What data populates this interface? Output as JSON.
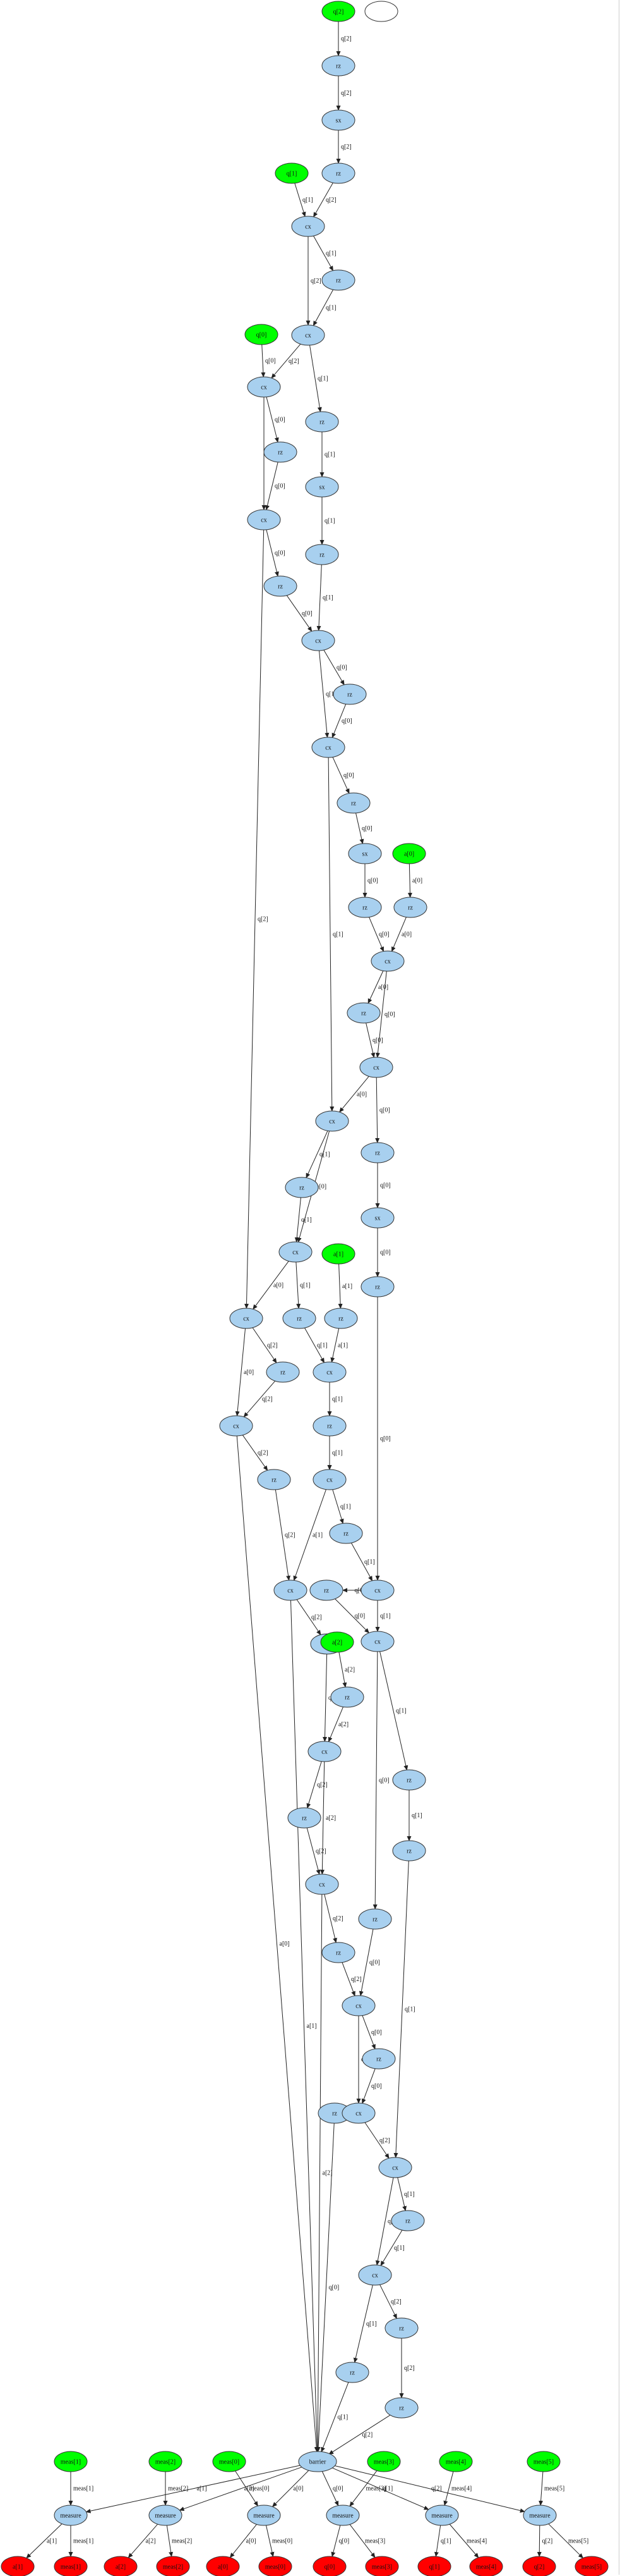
{
  "colors": {
    "input": "#00ff00",
    "gate": "#a8d0ef",
    "output": "#ff0000",
    "edge": "#222222",
    "stroke": "#333333"
  },
  "nodes": [
    {
      "id": "in_q2",
      "label": "q[2]",
      "kind": "input"
    },
    {
      "id": "blank_top",
      "label": "",
      "kind": "empty"
    },
    {
      "id": "rz_a",
      "label": "rz",
      "kind": "gate"
    },
    {
      "id": "sx_a",
      "label": "sx",
      "kind": "gate"
    },
    {
      "id": "in_q1",
      "label": "q[1]",
      "kind": "input"
    },
    {
      "id": "rz_b",
      "label": "rz",
      "kind": "gate"
    },
    {
      "id": "cx_1",
      "label": "cx",
      "kind": "gate"
    },
    {
      "id": "rz_c",
      "label": "rz",
      "kind": "gate"
    },
    {
      "id": "cx_2",
      "label": "cx",
      "kind": "gate"
    },
    {
      "id": "in_q0",
      "label": "q[0]",
      "kind": "input"
    },
    {
      "id": "rz_d",
      "label": "rz",
      "kind": "gate"
    },
    {
      "id": "cx_3",
      "label": "cx",
      "kind": "gate"
    },
    {
      "id": "rz_e",
      "label": "rz",
      "kind": "gate"
    },
    {
      "id": "sx_b",
      "label": "sx",
      "kind": "gate"
    },
    {
      "id": "cx_4",
      "label": "cx",
      "kind": "gate"
    },
    {
      "id": "rz_f",
      "label": "rz",
      "kind": "gate"
    },
    {
      "id": "rz_g",
      "label": "rz",
      "kind": "gate"
    },
    {
      "id": "cx_5",
      "label": "cx",
      "kind": "gate"
    },
    {
      "id": "rz_h",
      "label": "rz",
      "kind": "gate"
    },
    {
      "id": "cx_6",
      "label": "cx",
      "kind": "gate"
    },
    {
      "id": "rz_i",
      "label": "rz",
      "kind": "gate"
    },
    {
      "id": "sx_c",
      "label": "sx",
      "kind": "gate"
    },
    {
      "id": "in_a0",
      "label": "a[0]",
      "kind": "input"
    },
    {
      "id": "rz_j",
      "label": "rz",
      "kind": "gate"
    },
    {
      "id": "rz_k",
      "label": "rz",
      "kind": "gate"
    },
    {
      "id": "cx_7",
      "label": "cx",
      "kind": "gate"
    },
    {
      "id": "rz_l",
      "label": "rz",
      "kind": "gate"
    },
    {
      "id": "cx_8",
      "label": "cx",
      "kind": "gate"
    },
    {
      "id": "cx_9",
      "label": "cx",
      "kind": "gate"
    },
    {
      "id": "rz_m",
      "label": "rz",
      "kind": "gate"
    },
    {
      "id": "rz_n",
      "label": "rz",
      "kind": "gate"
    },
    {
      "id": "sx_d",
      "label": "sx",
      "kind": "gate"
    },
    {
      "id": "cx_10",
      "label": "cx",
      "kind": "gate"
    },
    {
      "id": "rz_o",
      "label": "rz",
      "kind": "gate"
    },
    {
      "id": "in_a1",
      "label": "a[1]",
      "kind": "input"
    },
    {
      "id": "cx_11",
      "label": "cx",
      "kind": "gate"
    },
    {
      "id": "rz_p",
      "label": "rz",
      "kind": "gate"
    },
    {
      "id": "rz_q",
      "label": "rz",
      "kind": "gate"
    },
    {
      "id": "cx_12",
      "label": "cx",
      "kind": "gate"
    },
    {
      "id": "cx_13",
      "label": "cx",
      "kind": "gate"
    },
    {
      "id": "rz_r",
      "label": "rz",
      "kind": "gate"
    },
    {
      "id": "rz_s",
      "label": "rz",
      "kind": "gate"
    },
    {
      "id": "cx_14",
      "label": "cx",
      "kind": "gate"
    },
    {
      "id": "rz_t",
      "label": "rz",
      "kind": "gate"
    },
    {
      "id": "rz_u",
      "label": "rz",
      "kind": "gate"
    },
    {
      "id": "cx_15",
      "label": "cx",
      "kind": "gate"
    },
    {
      "id": "rz_v",
      "label": "rz",
      "kind": "gate"
    },
    {
      "id": "cx_16",
      "label": "cx",
      "kind": "gate"
    },
    {
      "id": "cx_17",
      "label": "cx",
      "kind": "gate"
    },
    {
      "id": "rz_w",
      "label": "rz",
      "kind": "gate"
    },
    {
      "id": "in_a2",
      "label": "a[2]",
      "kind": "input"
    },
    {
      "id": "rz_x",
      "label": "rz",
      "kind": "gate"
    },
    {
      "id": "cx_18",
      "label": "cx",
      "kind": "gate"
    },
    {
      "id": "rz_y",
      "label": "rz",
      "kind": "gate"
    },
    {
      "id": "rz_z",
      "label": "rz",
      "kind": "gate"
    },
    {
      "id": "rz_aa",
      "label": "rz",
      "kind": "gate"
    },
    {
      "id": "cx_19",
      "label": "cx",
      "kind": "gate"
    },
    {
      "id": "rz_ab",
      "label": "rz",
      "kind": "gate"
    },
    {
      "id": "rz_ac",
      "label": "rz",
      "kind": "gate"
    },
    {
      "id": "cx_20",
      "label": "cx",
      "kind": "gate"
    },
    {
      "id": "rz_ad",
      "label": "rz",
      "kind": "gate"
    },
    {
      "id": "rz_ae",
      "label": "rz",
      "kind": "gate"
    },
    {
      "id": "cx_21",
      "label": "cx",
      "kind": "gate"
    },
    {
      "id": "cx_22",
      "label": "cx",
      "kind": "gate"
    },
    {
      "id": "rz_af",
      "label": "rz",
      "kind": "gate"
    },
    {
      "id": "rz_ag",
      "label": "rz",
      "kind": "gate"
    },
    {
      "id": "cx_23",
      "label": "cx",
      "kind": "gate"
    },
    {
      "id": "rz_ah",
      "label": "rz",
      "kind": "gate"
    },
    {
      "id": "rz_ai",
      "label": "rz",
      "kind": "gate"
    },
    {
      "id": "barrier",
      "label": "barrier",
      "kind": "gate"
    },
    {
      "id": "in_c1",
      "label": "meas[1]",
      "kind": "input"
    },
    {
      "id": "in_c2",
      "label": "meas[2]",
      "kind": "input"
    },
    {
      "id": "in_c0",
      "label": "meas[0]",
      "kind": "input"
    },
    {
      "id": "in_c3",
      "label": "meas[3]",
      "kind": "input"
    },
    {
      "id": "in_c4",
      "label": "meas[4]",
      "kind": "input"
    },
    {
      "id": "in_c5",
      "label": "meas[5]",
      "kind": "input"
    },
    {
      "id": "m1",
      "label": "measure",
      "kind": "gate"
    },
    {
      "id": "m2",
      "label": "measure",
      "kind": "gate"
    },
    {
      "id": "m3",
      "label": "measure",
      "kind": "gate"
    },
    {
      "id": "m4",
      "label": "measure",
      "kind": "gate"
    },
    {
      "id": "m5",
      "label": "measure",
      "kind": "gate"
    },
    {
      "id": "m6",
      "label": "measure",
      "kind": "gate"
    },
    {
      "id": "out_a1",
      "label": "a[1]",
      "kind": "output"
    },
    {
      "id": "out_c1",
      "label": "meas[1]",
      "kind": "output"
    },
    {
      "id": "out_a2",
      "label": "a[2]",
      "kind": "output"
    },
    {
      "id": "out_c2",
      "label": "meas[2]",
      "kind": "output"
    },
    {
      "id": "out_a0",
      "label": "a[0]",
      "kind": "output"
    },
    {
      "id": "out_c0",
      "label": "meas[0]",
      "kind": "output"
    },
    {
      "id": "out_q0",
      "label": "q[0]",
      "kind": "output"
    },
    {
      "id": "out_c3",
      "label": "meas[3]",
      "kind": "output"
    },
    {
      "id": "out_q1",
      "label": "q[1]",
      "kind": "output"
    },
    {
      "id": "out_c4",
      "label": "meas[4]",
      "kind": "output"
    },
    {
      "id": "out_q2",
      "label": "q[2]",
      "kind": "output"
    },
    {
      "id": "out_c5",
      "label": "meas[5]",
      "kind": "output"
    }
  ],
  "edges": [
    {
      "from": "in_q2",
      "to": "rz_a",
      "label": "q[2]"
    },
    {
      "from": "rz_a",
      "to": "sx_a",
      "label": "q[2]"
    },
    {
      "from": "sx_a",
      "to": "rz_b",
      "label": "q[2]"
    },
    {
      "from": "in_q1",
      "to": "cx_1",
      "label": "q[1]"
    },
    {
      "from": "rz_b",
      "to": "cx_1",
      "label": "q[2]"
    },
    {
      "from": "cx_1",
      "to": "rz_c",
      "label": "q[1]"
    },
    {
      "from": "cx_1",
      "to": "cx_2",
      "label": "q[2]"
    },
    {
      "from": "rz_c",
      "to": "cx_2",
      "label": "q[1]"
    },
    {
      "from": "in_q0",
      "to": "cx_3",
      "label": "q[0]"
    },
    {
      "from": "cx_2",
      "to": "cx_3",
      "label": "q[2]"
    },
    {
      "from": "cx_2",
      "to": "rz_d",
      "label": "q[1]"
    },
    {
      "from": "cx_3",
      "to": "rz_e",
      "label": "q[0]"
    },
    {
      "from": "cx_3",
      "to": "cx_4",
      "label": "q[2]"
    },
    {
      "from": "rz_e",
      "to": "cx_4",
      "label": "q[0]"
    },
    {
      "from": "rz_d",
      "to": "sx_b",
      "label": "q[1]"
    },
    {
      "from": "sx_b",
      "to": "rz_f",
      "label": "q[1]"
    },
    {
      "from": "cx_4",
      "to": "rz_g",
      "label": "q[0]"
    },
    {
      "from": "rz_f",
      "to": "cx_5",
      "label": "q[1]"
    },
    {
      "from": "rz_g",
      "to": "cx_5",
      "label": "q[0]"
    },
    {
      "from": "cx_5",
      "to": "rz_h",
      "label": "q[0]"
    },
    {
      "from": "cx_5",
      "to": "cx_6",
      "label": "q[1]"
    },
    {
      "from": "rz_h",
      "to": "cx_6",
      "label": "q[0]"
    },
    {
      "from": "cx_6",
      "to": "rz_i",
      "label": "q[0]"
    },
    {
      "from": "rz_i",
      "to": "sx_c",
      "label": "q[0]"
    },
    {
      "from": "sx_c",
      "to": "rz_j",
      "label": "q[0]"
    },
    {
      "from": "in_a0",
      "to": "rz_k",
      "label": "a[0]"
    },
    {
      "from": "rz_j",
      "to": "cx_7",
      "label": "q[0]"
    },
    {
      "from": "rz_k",
      "to": "cx_7",
      "label": "a[0]"
    },
    {
      "from": "cx_7",
      "to": "rz_l",
      "label": "a[0]"
    },
    {
      "from": "cx_7",
      "to": "cx_8",
      "label": "q[0]"
    },
    {
      "from": "rz_l",
      "to": "cx_8",
      "label": "q[0]"
    },
    {
      "from": "cx_8",
      "to": "cx_9",
      "label": "a[0]"
    },
    {
      "from": "cx_6",
      "to": "cx_9",
      "label": "q[1]"
    },
    {
      "from": "cx_8",
      "to": "rz_m",
      "label": "q[0]"
    },
    {
      "from": "cx_9",
      "to": "rz_n",
      "label": "q[1]"
    },
    {
      "from": "rz_m",
      "to": "sx_d",
      "label": "q[0]"
    },
    {
      "from": "rz_n",
      "to": "cx_10",
      "label": "q[1]"
    },
    {
      "from": "cx_9",
      "to": "cx_10",
      "label": "a[0]"
    },
    {
      "from": "sx_d",
      "to": "rz_o",
      "label": "q[0]"
    },
    {
      "from": "cx_10",
      "to": "cx_12",
      "label": "a[0]"
    },
    {
      "from": "cx_10",
      "to": "rz_p",
      "label": "q[1]"
    },
    {
      "from": "in_a1",
      "to": "rz_q",
      "label": "a[1]"
    },
    {
      "from": "cx_4",
      "to": "cx_12",
      "label": "q[2]"
    },
    {
      "from": "rz_p",
      "to": "cx_11",
      "label": "q[1]"
    },
    {
      "from": "rz_q",
      "to": "cx_11",
      "label": "a[1]"
    },
    {
      "from": "cx_12",
      "to": "rz_r",
      "label": "q[2]"
    },
    {
      "from": "cx_12",
      "to": "cx_13",
      "label": "a[0]"
    },
    {
      "from": "rz_r",
      "to": "cx_13",
      "label": "q[2]"
    },
    {
      "from": "cx_11",
      "to": "rz_s",
      "label": "q[1]"
    },
    {
      "from": "cx_11",
      "to": "cx_14",
      "label": "a[1]"
    },
    {
      "from": "rz_s",
      "to": "cx_14",
      "label": "q[1]"
    },
    {
      "from": "cx_13",
      "to": "rz_t",
      "label": "q[2]"
    },
    {
      "from": "cx_14",
      "to": "rz_u",
      "label": "q[1]"
    },
    {
      "from": "rz_t",
      "to": "cx_15",
      "label": "q[2]"
    },
    {
      "from": "cx_14",
      "to": "cx_15",
      "label": "a[1]"
    },
    {
      "from": "rz_u",
      "to": "cx_16",
      "label": "q[1]"
    },
    {
      "from": "rz_o",
      "to": "cx_16",
      "label": "q[0]"
    },
    {
      "from": "cx_16",
      "to": "rz_v",
      "label": "q[0]"
    },
    {
      "from": "cx_15",
      "to": "rz_w",
      "label": "q[2]"
    },
    {
      "from": "in_a2",
      "to": "rz_x",
      "label": "a[2]"
    },
    {
      "from": "cx_16",
      "to": "cx_17",
      "label": "q[1]"
    },
    {
      "from": "rz_v",
      "to": "cx_17",
      "label": "q[0]"
    },
    {
      "from": "rz_w",
      "to": "cx_18",
      "label": "q[2]"
    },
    {
      "from": "rz_x",
      "to": "cx_18",
      "label": "a[2]"
    },
    {
      "from": "cx_18",
      "to": "rz_y",
      "label": "q[2]"
    },
    {
      "from": "cx_18",
      "to": "cx_19",
      "label": "a[2]"
    },
    {
      "from": "rz_y",
      "to": "cx_19",
      "label": "q[2]"
    },
    {
      "from": "cx_17",
      "to": "rz_z",
      "label": "q[1]"
    },
    {
      "from": "rz_z",
      "to": "rz_aa",
      "label": "q[1]"
    },
    {
      "from": "cx_17",
      "to": "rz_ab",
      "label": "q[0]"
    },
    {
      "from": "cx_19",
      "to": "rz_ac",
      "label": "q[2]"
    },
    {
      "from": "rz_ac",
      "to": "cx_20",
      "label": "q[2]"
    },
    {
      "from": "rz_ab",
      "to": "cx_20",
      "label": "q[0]"
    },
    {
      "from": "cx_20",
      "to": "rz_ad",
      "label": "q[0]"
    },
    {
      "from": "cx_20",
      "to": "cx_21",
      "label": "q[2]"
    },
    {
      "from": "rz_ad",
      "to": "cx_21",
      "label": "q[0]"
    },
    {
      "from": "cx_21",
      "to": "rz_ae",
      "label": "q[0]"
    },
    {
      "from": "cx_21",
      "to": "cx_22",
      "label": "q[2]"
    },
    {
      "from": "rz_aa",
      "to": "cx_22",
      "label": "q[1]"
    },
    {
      "from": "cx_22",
      "to": "rz_af",
      "label": "q[1]"
    },
    {
      "from": "cx_22",
      "to": "cx_23",
      "label": "q[2]"
    },
    {
      "from": "rz_af",
      "to": "cx_23",
      "label": "q[1]"
    },
    {
      "from": "cx_23",
      "to": "rz_ag",
      "label": "q[1]"
    },
    {
      "from": "cx_23",
      "to": "rz_ah",
      "label": "q[2]"
    },
    {
      "from": "rz_ah",
      "to": "rz_ai",
      "label": "q[2]"
    },
    {
      "from": "cx_13",
      "to": "barrier",
      "label": "a[0]"
    },
    {
      "from": "cx_15",
      "to": "barrier",
      "label": "a[1]"
    },
    {
      "from": "cx_19",
      "to": "barrier",
      "label": "a[2]"
    },
    {
      "from": "rz_ae",
      "to": "barrier",
      "label": "q[0]"
    },
    {
      "from": "rz_ag",
      "to": "barrier",
      "label": "q[1]"
    },
    {
      "from": "rz_ai",
      "to": "barrier",
      "label": "q[2]"
    },
    {
      "from": "in_c1",
      "to": "m1",
      "label": "meas[1]"
    },
    {
      "from": "barrier",
      "to": "m1",
      "label": "a[1]"
    },
    {
      "from": "in_c2",
      "to": "m2",
      "label": "meas[2]"
    },
    {
      "from": "barrier",
      "to": "m2",
      "label": "a[2]"
    },
    {
      "from": "in_c0",
      "to": "m3",
      "label": "meas[0]"
    },
    {
      "from": "barrier",
      "to": "m3",
      "label": "a[0]"
    },
    {
      "from": "in_c3",
      "to": "m4",
      "label": "meas[3]"
    },
    {
      "from": "barrier",
      "to": "m4",
      "label": "q[0]"
    },
    {
      "from": "in_c4",
      "to": "m5",
      "label": "meas[4]"
    },
    {
      "from": "barrier",
      "to": "m5",
      "label": "q[1]"
    },
    {
      "from": "in_c5",
      "to": "m6",
      "label": "meas[5]"
    },
    {
      "from": "barrier",
      "to": "m6",
      "label": "q[2]"
    },
    {
      "from": "m1",
      "to": "out_a1",
      "label": "a[1]"
    },
    {
      "from": "m1",
      "to": "out_c1",
      "label": "meas[1]"
    },
    {
      "from": "m2",
      "to": "out_a2",
      "label": "a[2]"
    },
    {
      "from": "m2",
      "to": "out_c2",
      "label": "meas[2]"
    },
    {
      "from": "m3",
      "to": "out_a0",
      "label": "a[0]"
    },
    {
      "from": "m3",
      "to": "out_c0",
      "label": "meas[0]"
    },
    {
      "from": "m4",
      "to": "out_q0",
      "label": "q[0]"
    },
    {
      "from": "m4",
      "to": "out_c3",
      "label": "meas[3]"
    },
    {
      "from": "m5",
      "to": "out_q1",
      "label": "q[1]"
    },
    {
      "from": "m5",
      "to": "out_c4",
      "label": "meas[4]"
    },
    {
      "from": "m6",
      "to": "out_q2",
      "label": "q[2]"
    },
    {
      "from": "m6",
      "to": "out_c5",
      "label": "meas[5]"
    }
  ]
}
